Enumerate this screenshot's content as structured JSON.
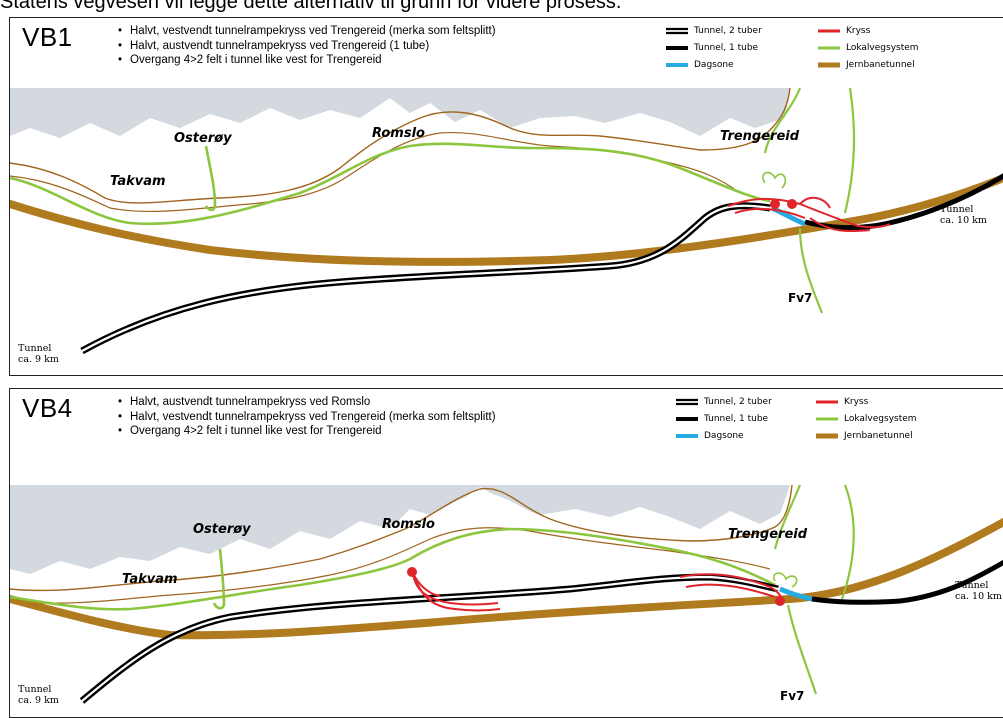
{
  "caption": "Statens vegvesen vil legge dette alternativ til grunn for videre prosess.",
  "legend": {
    "tunnel_2": "Tunnel, 2 tuber",
    "tunnel_1": "Tunnel, 1 tube",
    "dagsone": "Dagsone",
    "kryss": "Kryss",
    "lokalveg": "Lokalvegsystem",
    "jernbane": "Jernbanetunnel",
    "colors": {
      "kryss": "#e0242a",
      "lokalveg": "#8cc63f",
      "jernbane": "#b07a1e",
      "dagsone": "#27a9e1",
      "tunnel": "#000000",
      "sea": "#d3d9df",
      "contour": "#a0641e"
    }
  },
  "panels": [
    {
      "label": "VB1",
      "bullets": [
        "Halvt, vestvendt tunnelrampekryss ved Trengereid (merka som feltsplitt)",
        "Halvt, austvendt tunnelrampekryss ved Trengereid (1 tube)",
        "Overgang 4>2 felt i tunnel like vest for Trengereid"
      ],
      "places": {
        "osteroy": "Osterøy",
        "romslo": "Romslo",
        "trengereid": "Trengereid",
        "takvam": "Takvam"
      },
      "road": "Fv7",
      "tunnel_east": [
        "Tunnel",
        "ca. 10 km"
      ],
      "tunnel_west": [
        "Tunnel",
        "ca. 9 km"
      ]
    },
    {
      "label": "VB4",
      "bullets": [
        "Halvt, austvendt tunnelrampekryss ved Romslo",
        "Halvt, vestvendt tunnelrampekryss ved Trengereid (merka som feltsplitt)",
        "Overgang 4>2 felt i tunnel like vest for Trengereid"
      ],
      "places": {
        "osteroy": "Osterøy",
        "romslo": "Romslo",
        "trengereid": "Trengereid",
        "takvam": "Takvam"
      },
      "road": "Fv7",
      "tunnel_east": [
        "Tunnel",
        "ca. 10 km"
      ],
      "tunnel_west": [
        "Tunnel",
        "ca. 9 km"
      ]
    }
  ]
}
